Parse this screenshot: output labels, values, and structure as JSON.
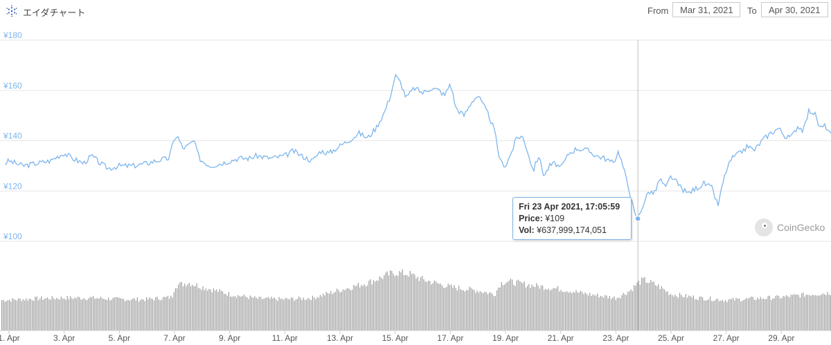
{
  "header": {
    "title": "エイダチャート",
    "from_label": "From",
    "from_value": "Mar 31, 2021",
    "to_label": "To",
    "to_value": "Apr 30, 2021"
  },
  "tooltip": {
    "date": "Fri 23 Apr 2021, 17:05:59",
    "price_label": "Price:",
    "price_value": "¥109",
    "vol_label": "Vol:",
    "vol_value": "¥637,999,174,051"
  },
  "watermark": "CoinGecko",
  "colors": {
    "line": "#7cb5ec",
    "volume": "#8a8a8a",
    "grid": "#e6e6e6",
    "axis_label": "#7cb5ec",
    "crosshair": "#bcbcbc"
  },
  "chart_data": {
    "type": "line",
    "title": "",
    "xlabel": "",
    "ylabel": "",
    "y_unit": "¥",
    "ylim": [
      100,
      180
    ],
    "y_ticks": [
      100,
      120,
      140,
      160,
      180
    ],
    "x_ticks": [
      "1. Apr",
      "3. Apr",
      "5. Apr",
      "7. Apr",
      "9. Apr",
      "11. Apr",
      "13. Apr",
      "15. Apr",
      "17. Apr",
      "19. Apr",
      "21. Apr",
      "23. Apr",
      "25. Apr",
      "27. Apr",
      "29. Apr"
    ],
    "x_tick_days": [
      1,
      3,
      5,
      7,
      9,
      11,
      13,
      15,
      17,
      19,
      21,
      23,
      25,
      27,
      29
    ],
    "x_range_days": [
      0.85,
      30.8
    ],
    "grid": true,
    "legend": "none",
    "price_series": {
      "x_day": [
        0.85,
        1.0,
        1.5,
        2.0,
        2.5,
        2.8,
        3.0,
        3.3,
        3.7,
        4.0,
        4.3,
        4.6,
        5.0,
        5.5,
        6.0,
        6.3,
        6.8,
        7.0,
        7.1,
        7.3,
        7.5,
        7.7,
        7.9,
        8.0,
        8.3,
        8.7,
        9.0,
        9.3,
        9.7,
        10.0,
        10.5,
        11.0,
        11.3,
        11.6,
        12.0,
        12.3,
        12.6,
        13.0,
        13.3,
        13.7,
        14.0,
        14.3,
        14.6,
        14.8,
        14.9,
        15.0,
        15.2,
        15.4,
        15.7,
        16.0,
        16.3,
        16.6,
        16.8,
        17.0,
        17.2,
        17.5,
        17.8,
        18.0,
        18.2,
        18.4,
        18.6,
        18.8,
        19.0,
        19.2,
        19.4,
        19.6,
        19.8,
        20.0,
        20.2,
        20.4,
        20.6,
        20.8,
        21.0,
        21.3,
        21.6,
        22.0,
        22.3,
        22.6,
        22.9,
        23.1,
        23.3,
        23.5,
        23.7,
        23.8,
        24.0,
        24.2,
        24.4,
        24.6,
        24.8,
        25.0,
        25.3,
        25.6,
        25.9,
        26.2,
        26.5,
        26.7,
        26.9,
        27.0,
        27.2,
        27.5,
        27.8,
        28.0,
        28.3,
        28.6,
        28.9,
        29.2,
        29.4,
        29.6,
        29.8,
        30.0,
        30.2,
        30.4,
        30.6,
        30.8
      ],
      "values": [
        131,
        132,
        130,
        131,
        132,
        134,
        135,
        133,
        131,
        134,
        131,
        129,
        130,
        130,
        131,
        132,
        133,
        141,
        142,
        137,
        138,
        140,
        133,
        132,
        130,
        131,
        132,
        133,
        133,
        134,
        133,
        134,
        136,
        134,
        132,
        136,
        135,
        138,
        140,
        143,
        141,
        145,
        151,
        157,
        161,
        166,
        163,
        157,
        161,
        159,
        161,
        160,
        158,
        163,
        153,
        150,
        156,
        158,
        154,
        150,
        144,
        132,
        130,
        135,
        141,
        142,
        136,
        128,
        134,
        126,
        130,
        131,
        129,
        135,
        137,
        136,
        134,
        133,
        131,
        136,
        128,
        120,
        110,
        109,
        115,
        120,
        119,
        125,
        121,
        126,
        122,
        119,
        121,
        123,
        121,
        114,
        124,
        128,
        133,
        135,
        138,
        136,
        140,
        143,
        145,
        141,
        142,
        146,
        144,
        152,
        151,
        145,
        146,
        142
      ]
    },
    "volume_series": {
      "x_day": [
        0.85,
        2.0,
        3.0,
        4.0,
        5.0,
        6.0,
        6.9,
        7.0,
        7.5,
        8.0,
        9.0,
        10.0,
        11.0,
        12.0,
        13.0,
        14.0,
        14.8,
        15.0,
        15.5,
        16.0,
        17.0,
        18.0,
        18.6,
        18.8,
        19.0,
        20.0,
        21.0,
        22.0,
        23.0,
        23.5,
        23.8,
        24.0,
        24.5,
        25.0,
        26.0,
        27.0,
        28.0,
        29.0,
        30.0,
        30.8
      ],
      "relative": [
        0.42,
        0.44,
        0.45,
        0.45,
        0.43,
        0.43,
        0.46,
        0.62,
        0.66,
        0.6,
        0.5,
        0.44,
        0.43,
        0.45,
        0.56,
        0.66,
        0.78,
        0.8,
        0.78,
        0.7,
        0.6,
        0.55,
        0.5,
        0.65,
        0.68,
        0.62,
        0.57,
        0.5,
        0.45,
        0.55,
        0.66,
        0.7,
        0.62,
        0.5,
        0.45,
        0.42,
        0.44,
        0.46,
        0.5,
        0.52
      ]
    },
    "tooltip_point": {
      "x_day": 23.8,
      "value": 109
    }
  }
}
